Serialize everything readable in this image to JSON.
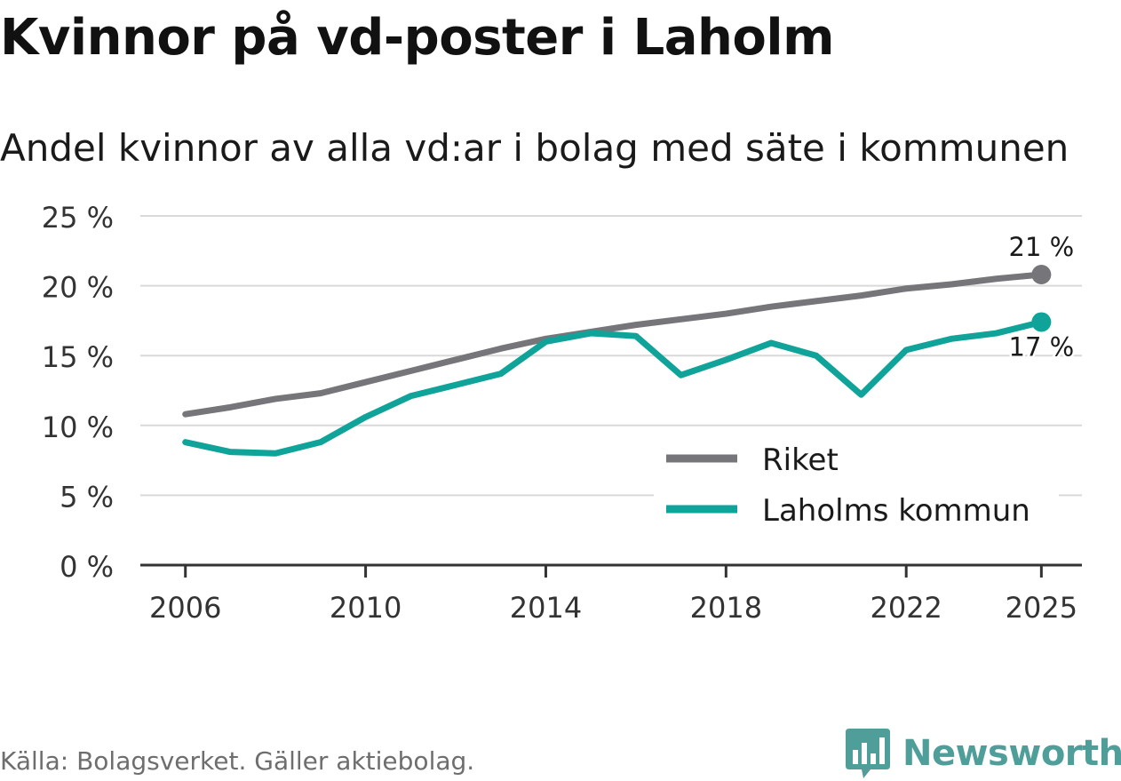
{
  "title": "Kvinnor på vd-poster i Laholm",
  "subtitle": "Andel kvinnor av alla vd:ar i bolag med säte i kommunen",
  "source": "Källa: Bolagsverket. Gäller aktiebolag.",
  "brand": {
    "name": "Newsworthy",
    "color": "#4f9e9a"
  },
  "chart_data": {
    "type": "line",
    "title": "Kvinnor på vd-poster i Laholm",
    "subtitle": "Andel kvinnor av alla vd:ar i bolag med säte i kommunen",
    "xlabel": "",
    "ylabel": "",
    "x": [
      2006,
      2007,
      2008,
      2009,
      2010,
      2011,
      2012,
      2013,
      2014,
      2015,
      2016,
      2017,
      2018,
      2019,
      2020,
      2021,
      2022,
      2023,
      2024,
      2025
    ],
    "xlim": [
      2005,
      2025.9
    ],
    "ylim": [
      0,
      25
    ],
    "x_ticks": [
      2006,
      2010,
      2014,
      2018,
      2022,
      2025
    ],
    "x_tick_labels": [
      "2006",
      "2010",
      "2014",
      "2018",
      "2022",
      "2025"
    ],
    "y_ticks": [
      0,
      5,
      10,
      15,
      20,
      25
    ],
    "y_tick_labels": [
      "0 %",
      "5 %",
      "10 %",
      "15 %",
      "20 %",
      "25 %"
    ],
    "grid": true,
    "legend_position": "bottom-right",
    "series": [
      {
        "name": "Riket",
        "color": "#76767a",
        "values": [
          10.8,
          11.3,
          11.9,
          12.3,
          13.1,
          13.9,
          14.7,
          15.5,
          16.2,
          16.7,
          17.2,
          17.6,
          18.0,
          18.5,
          18.9,
          19.3,
          19.8,
          20.1,
          20.5,
          20.8
        ],
        "end_label": "21 %",
        "end_label_position": "above"
      },
      {
        "name": "Laholms kommun",
        "color": "#0fa39a",
        "values": [
          8.8,
          8.1,
          8.0,
          8.8,
          10.6,
          12.1,
          12.9,
          13.7,
          16.0,
          16.6,
          16.4,
          13.6,
          14.7,
          15.9,
          15.0,
          12.2,
          15.4,
          16.2,
          16.6,
          17.4
        ],
        "end_label": "17 %",
        "end_label_position": "below"
      }
    ]
  }
}
